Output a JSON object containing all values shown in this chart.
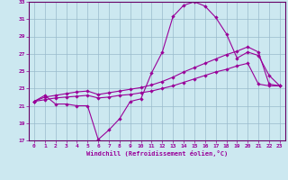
{
  "xlabel": "Windchill (Refroidissement éolien,°C)",
  "bg_color": "#cce8f0",
  "line_color": "#990099",
  "grid_color": "#99bbcc",
  "axis_color": "#660066",
  "xlim": [
    -0.5,
    23.5
  ],
  "ylim": [
    17,
    33
  ],
  "xticks": [
    0,
    1,
    2,
    3,
    4,
    5,
    6,
    7,
    8,
    9,
    10,
    11,
    12,
    13,
    14,
    15,
    16,
    17,
    18,
    19,
    20,
    21,
    22,
    23
  ],
  "yticks": [
    17,
    19,
    21,
    23,
    25,
    27,
    29,
    31,
    33
  ],
  "line1_x": [
    0,
    1,
    2,
    3,
    4,
    5,
    6,
    7,
    8,
    9,
    10,
    11,
    12,
    13,
    14,
    15,
    16,
    17,
    18,
    19,
    20,
    21,
    22,
    23
  ],
  "line1_y": [
    21.5,
    22.2,
    21.2,
    21.2,
    21.0,
    21.0,
    17.1,
    18.2,
    19.5,
    21.5,
    21.8,
    24.8,
    27.2,
    31.3,
    32.6,
    33.0,
    32.5,
    31.2,
    29.3,
    26.5,
    27.2,
    26.8,
    24.5,
    23.3
  ],
  "line2_x": [
    0,
    1,
    2,
    3,
    4,
    5,
    6,
    7,
    8,
    9,
    10,
    11,
    12,
    13,
    14,
    15,
    16,
    17,
    18,
    19,
    20,
    21,
    22,
    23
  ],
  "line2_y": [
    21.5,
    22.0,
    22.2,
    22.4,
    22.6,
    22.7,
    22.3,
    22.5,
    22.7,
    22.9,
    23.1,
    23.4,
    23.8,
    24.3,
    24.9,
    25.4,
    25.9,
    26.4,
    26.9,
    27.3,
    27.8,
    27.2,
    23.5,
    23.3
  ],
  "line3_x": [
    0,
    1,
    2,
    3,
    4,
    5,
    6,
    7,
    8,
    9,
    10,
    11,
    12,
    13,
    14,
    15,
    16,
    17,
    18,
    19,
    20,
    21,
    22,
    23
  ],
  "line3_y": [
    21.5,
    21.7,
    21.9,
    22.0,
    22.1,
    22.2,
    21.9,
    22.0,
    22.2,
    22.3,
    22.5,
    22.7,
    23.0,
    23.3,
    23.7,
    24.1,
    24.5,
    24.9,
    25.2,
    25.6,
    25.9,
    23.5,
    23.3,
    23.3
  ]
}
